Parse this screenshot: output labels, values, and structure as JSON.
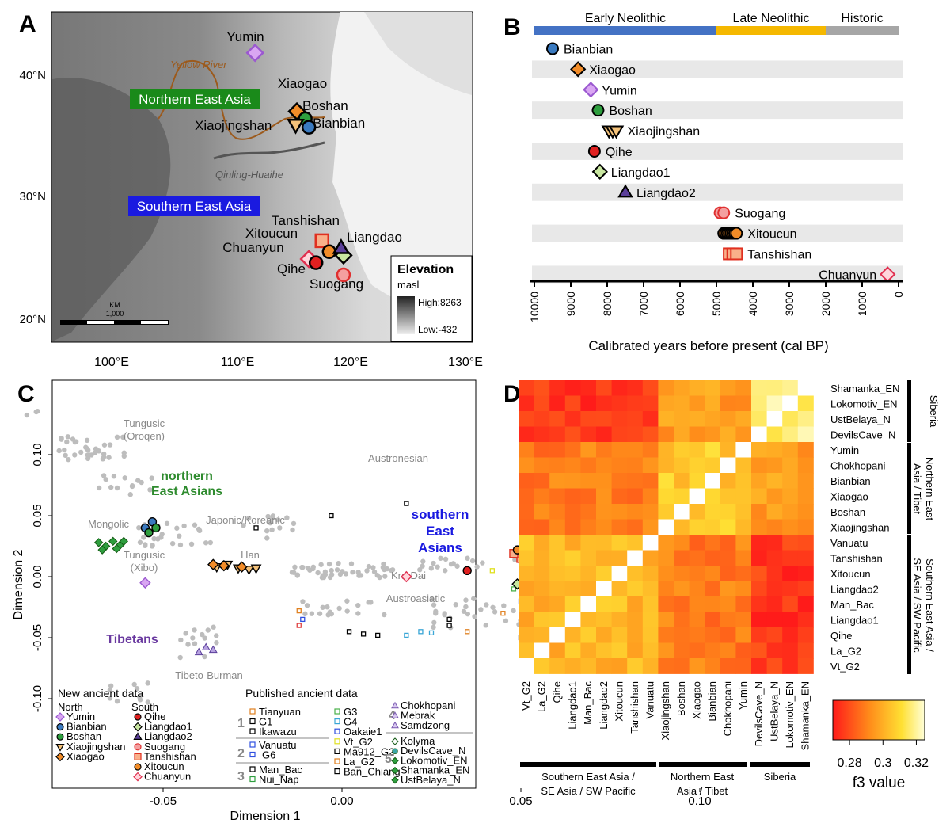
{
  "panels": {
    "a": "A",
    "b": "B",
    "c": "C",
    "d": "D"
  },
  "map": {
    "lat_labels": [
      "40°N",
      "30°N",
      "20°N"
    ],
    "lon_labels": [
      "100°E",
      "110°E",
      "120°E",
      "130°E"
    ],
    "river_label": "Yellow River",
    "divide_label": "Qinling-Huaihe",
    "region_north": "Northern East Asia",
    "region_south": "Southern East Asia",
    "scalebar_unit": "KM",
    "scalebar_value": "1,000",
    "legend_title": "Elevation",
    "legend_unit": "masl",
    "legend_high": "High:8263",
    "legend_low": "Low:-432",
    "sites": [
      {
        "name": "Yumin",
        "lat": 41.9,
        "lon": 112.0,
        "marker": "diamond",
        "color": "#d9a6f2",
        "stroke": "#9b59d0"
      },
      {
        "name": "Xiaogao",
        "lat": 37.1,
        "lon": 115.5,
        "marker": "diamond",
        "color": "#f28c28",
        "stroke": "#000000"
      },
      {
        "name": "Boshan",
        "lat": 36.5,
        "lon": 116.2,
        "marker": "circle",
        "color": "#2e9e3e",
        "stroke": "#000000"
      },
      {
        "name": "Xiaojingshan",
        "lat": 36.0,
        "lon": 115.4,
        "marker": "triangle-down",
        "color": "#f4c27a",
        "stroke": "#000000"
      },
      {
        "name": "Bianbian",
        "lat": 35.8,
        "lon": 116.5,
        "marker": "circle",
        "color": "#3a7ac0",
        "stroke": "#000000"
      },
      {
        "name": "Tanshishan",
        "lat": 26.5,
        "lon": 117.6,
        "marker": "square",
        "color": "#f9b08a",
        "stroke": "#e03020"
      },
      {
        "name": "Xitoucun",
        "lat": 25.6,
        "lon": 118.2,
        "marker": "circle",
        "color": "#f28c28",
        "stroke": "#000000"
      },
      {
        "name": "Liangdao1",
        "lat": 25.3,
        "lon": 119.4,
        "marker": "diamond",
        "color": "#c8e6a0",
        "stroke": "#000000"
      },
      {
        "name": "Liangdao2",
        "lat": 25.9,
        "lon": 119.2,
        "marker": "triangle-up",
        "color": "#5b3f9a",
        "stroke": "#000000"
      },
      {
        "name": "Chuanyun",
        "lat": 25.0,
        "lon": 116.5,
        "marker": "diamond",
        "color": "#ffd6dc",
        "stroke": "#e03050"
      },
      {
        "name": "Qihe",
        "lat": 24.7,
        "lon": 117.1,
        "marker": "circle",
        "color": "#e02020",
        "stroke": "#000000"
      },
      {
        "name": "Suogang",
        "lat": 23.7,
        "lon": 119.4,
        "marker": "circle",
        "color": "#f4a0a0",
        "stroke": "#e03030"
      }
    ],
    "site_labels": {
      "yumin": "Yumin",
      "xiaogao": "Xiaogao",
      "boshan": "Boshan",
      "xiaojingshan": "Xiaojingshan",
      "bianbian": "Bianbian",
      "tanshishan": "Tanshishan",
      "xitoucun": "Xitoucun",
      "liangdao": "Liangdao",
      "chuanyun": "Chuanyun",
      "qihe": "Qihe",
      "suogang": "Suogang"
    },
    "colors": {
      "north_box": "#1a8a1a",
      "south_box": "#1a1ae0",
      "river": "#9c5a1c"
    }
  },
  "timeline": {
    "periods": [
      {
        "name": "Early Neolithic",
        "start": 10000,
        "end": 5000,
        "color": "#4472c4"
      },
      {
        "name": "Late Neolithic",
        "start": 5000,
        "end": 2000,
        "color": "#f5b800"
      },
      {
        "name": "Historic",
        "start": 2000,
        "end": 0,
        "color": "#a6a6a6"
      }
    ],
    "sites": [
      {
        "name": "Bianbian",
        "marker": "circle",
        "fill": "#3a7ac0",
        "stroke": "#000",
        "dates": [
          9500
        ]
      },
      {
        "name": "Xiaogao",
        "marker": "diamond",
        "fill": "#f28c28",
        "stroke": "#000",
        "dates": [
          8800
        ]
      },
      {
        "name": "Yumin",
        "marker": "diamond",
        "fill": "#d9a6f2",
        "stroke": "#9b59d0",
        "dates": [
          8450
        ]
      },
      {
        "name": "Boshan",
        "marker": "circle",
        "fill": "#2e9e3e",
        "stroke": "#000",
        "dates": [
          8250
        ]
      },
      {
        "name": "Xiaojingshan",
        "marker": "triangle-down",
        "fill": "#f4c27a",
        "stroke": "#000",
        "dates": [
          7950,
          7850,
          7750
        ]
      },
      {
        "name": "Qihe",
        "marker": "circle",
        "fill": "#e02020",
        "stroke": "#000",
        "dates": [
          8350
        ]
      },
      {
        "name": "Liangdao1",
        "marker": "diamond",
        "fill": "#c8e6a0",
        "stroke": "#000",
        "dates": [
          8200
        ]
      },
      {
        "name": "Liangdao2",
        "marker": "triangle-up",
        "fill": "#5b3f9a",
        "stroke": "#000",
        "dates": [
          7500
        ]
      },
      {
        "name": "Suogang",
        "marker": "circle",
        "fill": "#f4a0a0",
        "stroke": "#e03030",
        "dates": [
          4900,
          4800
        ]
      },
      {
        "name": "Xitoucun",
        "marker": "circle",
        "fill": "#f28c28",
        "stroke": "#000",
        "dates": [
          4800,
          4750,
          4700,
          4650,
          4600,
          4550,
          4500,
          4450
        ]
      },
      {
        "name": "Tanshishan",
        "marker": "square",
        "fill": "#f9b08a",
        "stroke": "#e03020",
        "dates": [
          4650,
          4550,
          4450
        ]
      },
      {
        "name": "Chuanyun",
        "marker": "diamond",
        "fill": "#ffd6dc",
        "stroke": "#e03050",
        "dates": [
          300
        ]
      }
    ],
    "x_ticks": [
      "10000",
      "9000",
      "8000",
      "7000",
      "6000",
      "5000",
      "4000",
      "3000",
      "2000",
      "1000",
      "0"
    ],
    "xlabel": "Calibrated years before present (cal BP)"
  },
  "chart_data": [
    {
      "type": "scatter",
      "title": "",
      "xlabel": "Dimension 1",
      "ylabel": "Dimension 2",
      "xlim": [
        -0.1,
        0.12
      ],
      "ylim": [
        -0.12,
        0.17
      ],
      "x_ticks": [
        "-0.05",
        "0.00",
        "0.05",
        "0.10"
      ],
      "y_ticks": [
        "0.10",
        "0.05",
        "0.00",
        "-0.05",
        "-0.10"
      ],
      "group_labels": {
        "tungusic_oroqen": "Tungusic\n(Oroqen)",
        "northern": "northern\nEast Asians",
        "mongolic": "Mongolic",
        "japonic": "Japonic/Koreanic",
        "han": "Han",
        "tungusic_xibo": "Tungusic\n(Xibo)",
        "austronesian": "Austronesian",
        "southern": "southern\nEast\nAsians",
        "kradai": "Kra-Dai",
        "austroasiatic": "Austroasiatic",
        "tibetans": "Tibetans",
        "tibeto_burman": "Tibeto-Burman"
      },
      "series": [
        {
          "name": "Yumin",
          "points": [
            [
              -0.055,
              -0.005
            ]
          ]
        },
        {
          "name": "Bianbian",
          "points": [
            [
              -0.055,
              0.04
            ],
            [
              -0.053,
              0.045
            ]
          ]
        },
        {
          "name": "Boshan",
          "points": [
            [
              -0.054,
              0.036
            ],
            [
              -0.052,
              0.04
            ]
          ]
        },
        {
          "name": "Xiaojingshan",
          "points": [
            [
              -0.035,
              0.008
            ],
            [
              -0.032,
              0.01
            ],
            [
              -0.029,
              0.007
            ],
            [
              -0.026,
              0.006
            ],
            [
              -0.024,
              0.007
            ]
          ]
        },
        {
          "name": "Xiaogao",
          "points": [
            [
              -0.036,
              0.01
            ],
            [
              -0.033,
              0.009
            ],
            [
              -0.028,
              0.008
            ]
          ]
        },
        {
          "name": "Qihe",
          "points": [
            [
              0.035,
              0.005
            ]
          ]
        },
        {
          "name": "Liangdao1",
          "points": [
            [
              0.049,
              -0.006
            ]
          ]
        },
        {
          "name": "Liangdao2",
          "points": [
            [
              0.057,
              0.025
            ]
          ]
        },
        {
          "name": "Suogang",
          "points": [
            [
              0.056,
              0.035
            ]
          ]
        },
        {
          "name": "Tanshishan",
          "points": [
            [
              0.05,
              0.015
            ],
            [
              0.053,
              0.017
            ],
            [
              0.048,
              0.019
            ]
          ]
        },
        {
          "name": "Xitoucun",
          "points": [
            [
              0.049,
              0.022
            ],
            [
              0.052,
              0.02
            ],
            [
              0.055,
              0.021
            ],
            [
              0.057,
              0.018
            ],
            [
              0.051,
              0.024
            ],
            [
              0.054,
              0.026
            ]
          ]
        },
        {
          "name": "Chuanyun",
          "points": [
            [
              0.018,
              0.0
            ]
          ]
        }
      ],
      "legend": {
        "new_title": "New ancient data",
        "north_title": "North",
        "south_title": "South",
        "north": [
          "Yumin",
          "Bianbian",
          "Boshan",
          "Xiaojingshan",
          "Xiaogao"
        ],
        "south": [
          "Qihe",
          "Liangdao1",
          "Liangdao2",
          "Suogang",
          "Tanshishan",
          "Xitoucun",
          "Chuanyun"
        ],
        "published_title": "Published ancient data",
        "groups": [
          {
            "num": "1",
            "col1": [
              "Tianyuan",
              "G1",
              "Ikawazu"
            ],
            "col2": [
              "G3",
              "G4",
              "Oakaie1",
              "Vt_G2",
              "Ma912_G2",
              "La_G2",
              "Ban_Chiang"
            ]
          },
          {
            "num": "2",
            "col1": [
              "Vanuatu",
              "G6"
            ]
          },
          {
            "num": "3",
            "col1": [
              "Man_Bac",
              "Nui_Nap"
            ]
          },
          {
            "num": "4",
            "col1": [
              "Chokhopani",
              "Mebrak",
              "Samdzong"
            ]
          },
          {
            "num": "5",
            "col1": [
              "Kolyma",
              "DevilsCave_N",
              "Lokomotiv_EN",
              "Shamanka_EN",
              "UstBelaya_N"
            ]
          }
        ]
      }
    },
    {
      "type": "heatmap",
      "title": "",
      "rows": [
        "Shamanka_EN",
        "Lokomotiv_EN",
        "UstBelaya_N",
        "DevilsCave_N",
        "Yumin",
        "Chokhopani",
        "Bianbian",
        "Xiaogao",
        "Boshan",
        "Xiaojingshan",
        "Vanuatu",
        "Tanshishan",
        "Xitoucun",
        "Liangdao2",
        "Man_Bac",
        "Liangdao1",
        "Qihe",
        "La_G2",
        "Vt_G2"
      ],
      "columns": [
        "Vt_G2",
        "La_G2",
        "Qihe",
        "Liangdao1",
        "Man_Bac",
        "Liangdao2",
        "Xitoucun",
        "Tanshishan",
        "Vanuatu",
        "Xiaojingshan",
        "Boshan",
        "Xiaogao",
        "Bianbian",
        "Chokhopani",
        "Yumin",
        "DevilsCave_N",
        "UstBelaya_N",
        "Lokomotiv_EN",
        "Shamanka_EN"
      ],
      "groups": {
        "siberia": "Siberia",
        "northern_right": "Northern East\nAsia / Tibet",
        "southern_right": "Southern East Asia /\nSE Asia / SW Pacific",
        "southern_bottom": "Southern East Asia /\nSE Asia / SW Pacific",
        "northern_bottom": "Northern East\nAsia / Tibet",
        "siberia_bottom": "Siberia"
      },
      "colorbar": {
        "ticks": [
          "0.28",
          "0.3",
          "0.32"
        ],
        "label": "f3 value",
        "min": 0.27,
        "max": 0.325
      }
    }
  ]
}
